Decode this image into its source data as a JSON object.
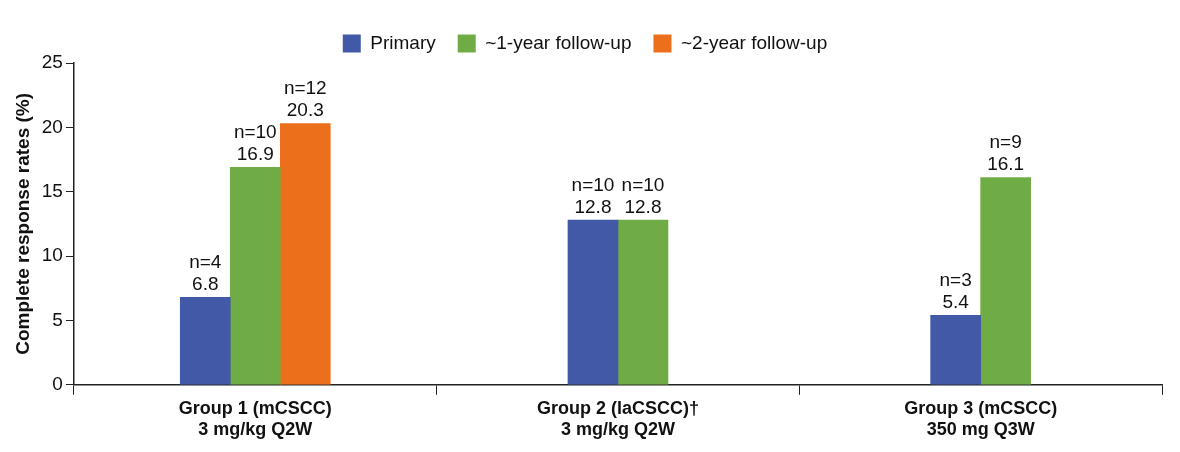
{
  "chart_data": {
    "type": "bar",
    "ylabel": "Complete response rates (%)",
    "categories": [
      "Group 1 (mCSCC)\n3 mg/kg Q2W",
      "Group 2 (laCSCC)†\n3 mg/kg Q2W",
      "Group 3 (mCSCC)\n350 mg Q3W"
    ],
    "series": [
      {
        "name": "Primary",
        "color": "#4159a6",
        "values": [
          6.8,
          12.8,
          5.4
        ],
        "value_labels": [
          "n=4\n6.8",
          "n=10\n12.8",
          "n=3\n5.4"
        ]
      },
      {
        "name": "~1-year follow-up",
        "color": "#6fac46",
        "values": [
          16.9,
          12.8,
          16.1
        ],
        "value_labels": [
          "n=10\n16.9",
          "n=10\n12.8",
          "n=9\n16.1"
        ]
      },
      {
        "name": "~2-year follow-up",
        "color": "#ec6f1c",
        "values": [
          20.3,
          null,
          null
        ],
        "value_labels": [
          "n=12\n20.3",
          null,
          null
        ]
      }
    ],
    "ylim": [
      0,
      25
    ],
    "yticks": [
      0,
      5,
      10,
      15,
      20,
      25
    ],
    "grid": false,
    "legend": "top"
  }
}
